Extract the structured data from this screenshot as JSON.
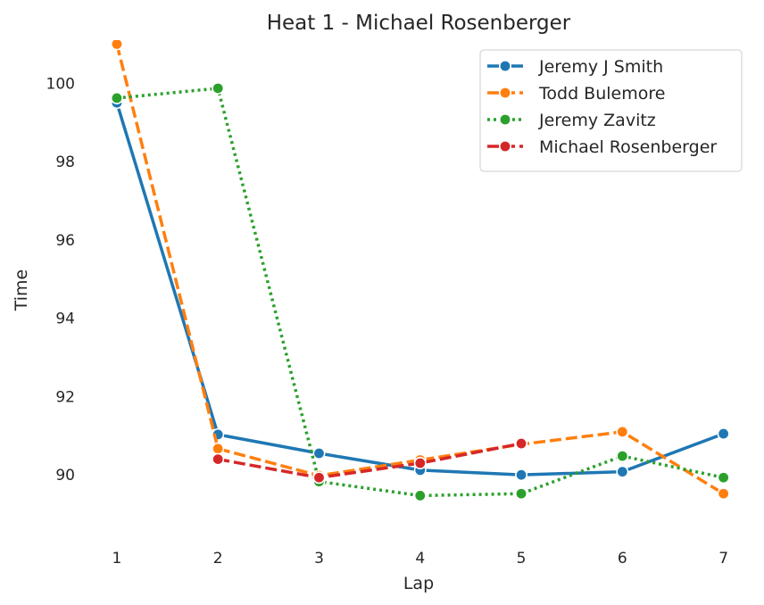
{
  "chart_data": {
    "type": "line",
    "title": "Heat 1 - Michael Rosenberger",
    "xlabel": "Lap",
    "ylabel": "Time",
    "x_ticks": [
      1,
      2,
      3,
      4,
      5,
      6,
      7
    ],
    "y_ticks": [
      90,
      92,
      94,
      96,
      98,
      100
    ],
    "xlim": [
      0.78,
      7.18
    ],
    "ylim": [
      88.5,
      101.1
    ],
    "grid": false,
    "legend_position": "top-right",
    "series": [
      {
        "name": "Jeremy J Smith",
        "color": "#1f77b4",
        "dash": "solid",
        "x": [
          1,
          2,
          3,
          4,
          5,
          6,
          7
        ],
        "y": [
          99.5,
          91.03,
          90.55,
          90.12,
          90.0,
          90.08,
          91.05
        ]
      },
      {
        "name": "Todd Bulemore",
        "color": "#ff7f0e",
        "dash": "dashed",
        "x": [
          1,
          2,
          3,
          4,
          5,
          6,
          7
        ],
        "y": [
          101.0,
          90.67,
          89.98,
          90.38,
          90.78,
          91.1,
          89.52
        ]
      },
      {
        "name": "Jeremy Zavitz",
        "color": "#2ca02c",
        "dash": "dotted",
        "x": [
          1,
          2,
          3,
          4,
          5,
          6,
          7
        ],
        "y": [
          99.62,
          99.87,
          89.83,
          89.47,
          89.52,
          90.48,
          89.93
        ]
      },
      {
        "name": "Michael Rosenberger",
        "color": "#d62728",
        "dash": "dashed",
        "x": [
          2,
          3,
          4,
          5
        ],
        "y": [
          90.4,
          89.93,
          90.3,
          90.8
        ]
      }
    ]
  }
}
